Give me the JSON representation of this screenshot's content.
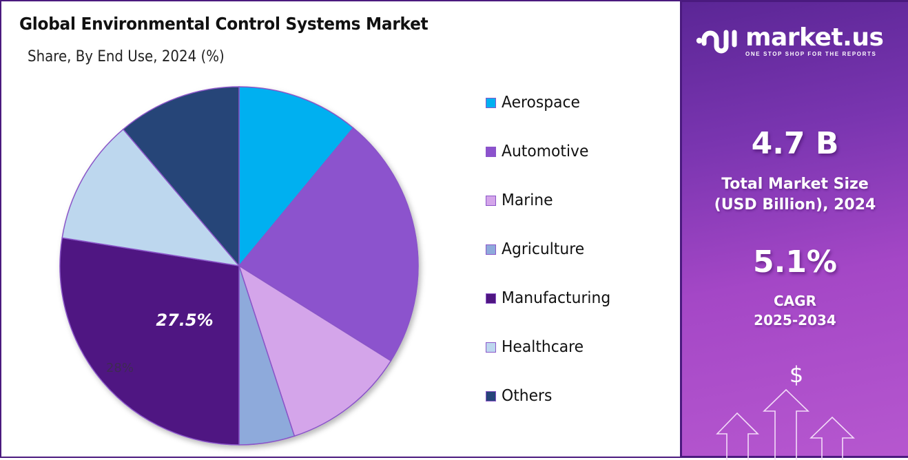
{
  "chart_data": {
    "type": "pie",
    "title": "Global Environmental Control Systems Market",
    "subtitle": "Share, By End Use, 2024 (%)",
    "categories": [
      "Aerospace",
      "Automotive",
      "Marine",
      "Agriculture",
      "Manufacturing",
      "Healthcare",
      "Others"
    ],
    "values": [
      11.0,
      22.9,
      11.1,
      5.0,
      27.5,
      11.3,
      11.2
    ],
    "colors": [
      "#00b0f0",
      "#8c52cd",
      "#d4a5ea",
      "#8eaadb",
      "#4f1682",
      "#bdd7ee",
      "#264478"
    ],
    "data_labels": [
      {
        "category": "Manufacturing",
        "text": "27.5%"
      }
    ],
    "ghost_label": "28%",
    "legend_position": "right",
    "start_angle_deg": 0,
    "direction": "clockwise"
  },
  "header": {
    "title": "Global Environmental Control Systems Market",
    "subtitle": "Share, By End Use, 2024 (%)"
  },
  "legend": {
    "items": [
      {
        "label": "Aerospace",
        "color": "#00b0f0"
      },
      {
        "label": "Automotive",
        "color": "#8c52cd"
      },
      {
        "label": "Marine",
        "color": "#d4a5ea"
      },
      {
        "label": "Agriculture",
        "color": "#8eaadb"
      },
      {
        "label": "Manufacturing",
        "color": "#4f1682"
      },
      {
        "label": "Healthcare",
        "color": "#bdd7ee"
      },
      {
        "label": "Others",
        "color": "#264478"
      }
    ]
  },
  "pie_labels": {
    "main": "27.5%",
    "ghost": "28%"
  },
  "side_panel": {
    "brand": {
      "name": "market.us",
      "tagline": "ONE STOP SHOP FOR THE REPORTS"
    },
    "market_size": {
      "value": "4.7 B",
      "label_line1": "Total Market Size",
      "label_line2": "(USD Billion), 2024"
    },
    "cagr": {
      "value": "5.1%",
      "label_line1": "CAGR",
      "label_line2": "2025-2034"
    },
    "icon_symbol": "$"
  },
  "theme": {
    "frame_border": "#4a1a7e",
    "panel_top": "#5b2696",
    "panel_bottom": "#b657cf",
    "slice_border": "#8a55c8"
  }
}
